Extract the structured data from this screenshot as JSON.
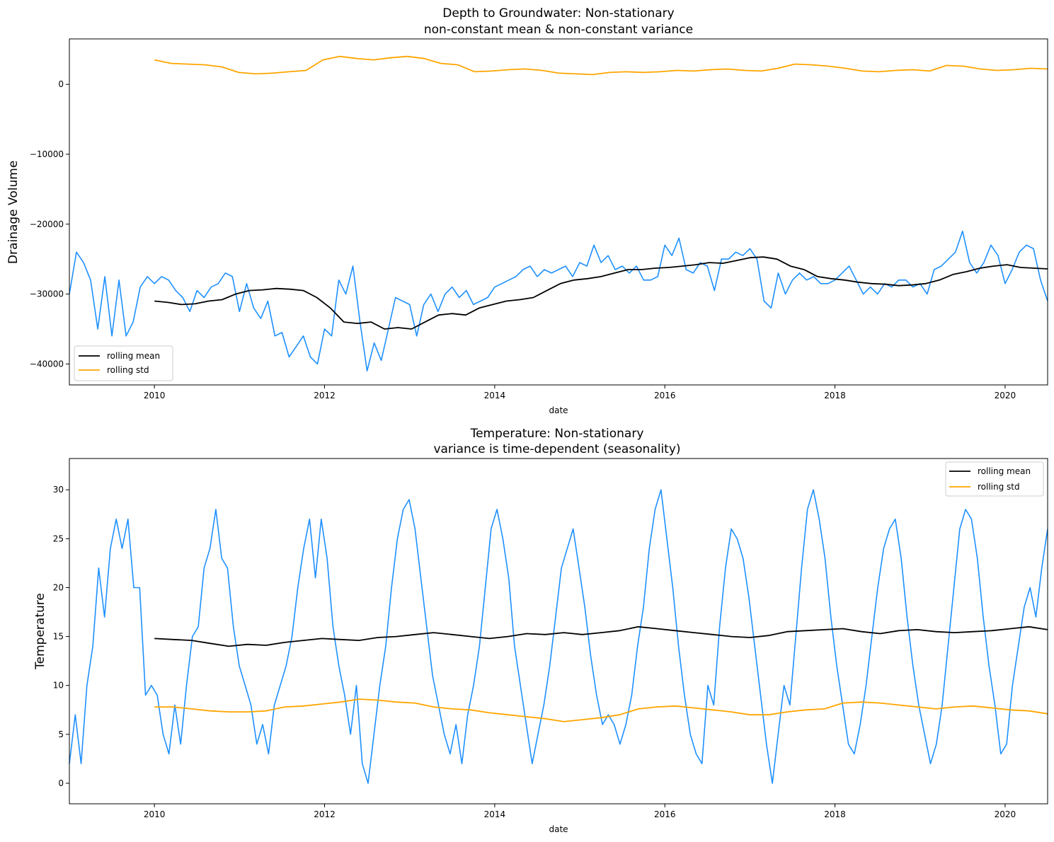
{
  "chart_data": [
    {
      "type": "line",
      "title": "Depth to Groundwater: Non-stationary",
      "subtitle": "non-constant mean & non-constant variance",
      "xlabel": "date",
      "ylabel": "Drainage Volume",
      "xlim": [
        2009.0,
        2020.5
      ],
      "ylim": [
        -43000,
        6500
      ],
      "xticks": [
        "2010",
        "2012",
        "2014",
        "2016",
        "2018",
        "2020"
      ],
      "yticks": [
        "−40000",
        "−30000",
        "−20000",
        "−10000",
        "0"
      ],
      "legend_loc": "lower-left",
      "series": [
        {
          "name": "",
          "color": "#1e90ff",
          "x_start": 2009.0,
          "x_end": 2020.5,
          "knots": [
            -30000,
            -24000,
            -25500,
            -28000,
            -35000,
            -27500,
            -36000,
            -28000,
            -36000,
            -34000,
            -29000,
            -27500,
            -28500,
            -27500,
            -28000,
            -29500,
            -30500,
            -32500,
            -29500,
            -30500,
            -29000,
            -28500,
            -27000,
            -27500,
            -32500,
            -28500,
            -32000,
            -33500,
            -31000,
            -36000,
            -35500,
            -39000,
            -37500,
            -36000,
            -39000,
            -40000,
            -35000,
            -36000,
            -28000,
            -30000,
            -26000,
            -34000,
            -41000,
            -37000,
            -39500,
            -35000,
            -30500,
            -31000,
            -31500,
            -36000,
            -31500,
            -30000,
            -32500,
            -30000,
            -29000,
            -30500,
            -29500,
            -31500,
            -31000,
            -30500,
            -29000,
            -28500,
            -28000,
            -27500,
            -26500,
            -26000,
            -27500,
            -26500,
            -27000,
            -26500,
            -26000,
            -27500,
            -25500,
            -26000,
            -23000,
            -25500,
            -24500,
            -26500,
            -26000,
            -27000,
            -26000,
            -28000,
            -28000,
            -27500,
            -23000,
            -24500,
            -22000,
            -26500,
            -27000,
            -25500,
            -26000,
            -29500,
            -25000,
            -25000,
            -24000,
            -24500,
            -23500,
            -25000,
            -31000,
            -32000,
            -27000,
            -30000,
            -28000,
            -27000,
            -28000,
            -27500,
            -28500,
            -28500,
            -28000,
            -27000,
            -26000,
            -28000,
            -30000,
            -29000,
            -30000,
            -28500,
            -29000,
            -28000,
            -28000,
            -29000,
            -28500,
            -30000,
            -26500,
            -26000,
            -25000,
            -24000,
            -21000,
            -25500,
            -27000,
            -25500,
            -23000,
            -24500,
            -28500,
            -26500,
            -24000,
            -23000,
            -23500,
            -28000,
            -31000
          ]
        },
        {
          "name": "rolling mean",
          "color": "#000000",
          "x_start": 2010.0,
          "x_end": 2020.5,
          "knots": [
            -31000,
            -31200,
            -31500,
            -31400,
            -31000,
            -30800,
            -30000,
            -29500,
            -29400,
            -29200,
            -29300,
            -29500,
            -30500,
            -32000,
            -34000,
            -34200,
            -34000,
            -35000,
            -34800,
            -35000,
            -34000,
            -33000,
            -32800,
            -33000,
            -32000,
            -31500,
            -31000,
            -30800,
            -30500,
            -29500,
            -28500,
            -28000,
            -27800,
            -27500,
            -27000,
            -26500,
            -26500,
            -26300,
            -26200,
            -26000,
            -25800,
            -25500,
            -25600,
            -25200,
            -24800,
            -24700,
            -25000,
            -26000,
            -26500,
            -27500,
            -27800,
            -28000,
            -28300,
            -28500,
            -28600,
            -28800,
            -28700,
            -28500,
            -28000,
            -27200,
            -26800,
            -26300,
            -26000,
            -25800,
            -26200,
            -26300,
            -26400
          ]
        },
        {
          "name": "rolling std",
          "color": "#ffa500",
          "x_start": 2010.0,
          "x_end": 2020.5,
          "knots": [
            3500,
            3000,
            2900,
            2800,
            2500,
            1700,
            1500,
            1600,
            1800,
            2000,
            3500,
            4000,
            3700,
            3500,
            3800,
            4000,
            3700,
            3000,
            2800,
            1800,
            1900,
            2100,
            2200,
            2000,
            1600,
            1500,
            1400,
            1700,
            1800,
            1700,
            1800,
            2000,
            1900,
            2100,
            2200,
            2000,
            1900,
            2300,
            2900,
            2800,
            2600,
            2300,
            1900,
            1800,
            2000,
            2100,
            1900,
            2700,
            2600,
            2200,
            2000,
            2100,
            2300,
            2200
          ]
        }
      ]
    },
    {
      "type": "line",
      "title": "Temperature: Non-stationary",
      "subtitle": "variance is time-dependent (seasonality)",
      "xlabel": "date",
      "ylabel": "Temperature",
      "xlim": [
        2009.0,
        2020.5
      ],
      "ylim": [
        -2.1,
        33.2
      ],
      "xticks": [
        "2010",
        "2012",
        "2014",
        "2016",
        "2018",
        "2020"
      ],
      "yticks": [
        "0",
        "5",
        "10",
        "15",
        "20",
        "25",
        "30"
      ],
      "legend_loc": "upper-right",
      "series": [
        {
          "name": "",
          "color": "#1e90ff",
          "x_start": 2009.0,
          "x_end": 2020.5,
          "knots": [
            2,
            7,
            2,
            10,
            14,
            22,
            17,
            24,
            27,
            24,
            27,
            20,
            20,
            9,
            10,
            9,
            5,
            3,
            8,
            4,
            10,
            15,
            16,
            22,
            24,
            28,
            23,
            22,
            16,
            12,
            10,
            8,
            4,
            6,
            3,
            8,
            10,
            12,
            15,
            20,
            24,
            27,
            21,
            27,
            23,
            16,
            12,
            9,
            5,
            10,
            2,
            0,
            5,
            10,
            14,
            20,
            25,
            28,
            29,
            26,
            21,
            16,
            11,
            8,
            5,
            3,
            6,
            2,
            7,
            10,
            14,
            20,
            26,
            28,
            25,
            21,
            14,
            10,
            6,
            2,
            5,
            8,
            12,
            17,
            22,
            24,
            26,
            22,
            18,
            13,
            9,
            6,
            7,
            6,
            4,
            6,
            9,
            14,
            18,
            24,
            28,
            30,
            25,
            20,
            14,
            9,
            5,
            3,
            2,
            10,
            8,
            16,
            22,
            26,
            25,
            23,
            19,
            14,
            9,
            4,
            0,
            5,
            10,
            8,
            15,
            22,
            28,
            30,
            27,
            23,
            17,
            12,
            8,
            4,
            3,
            6,
            10,
            15,
            20,
            24,
            26,
            27,
            23,
            17,
            12,
            8,
            5,
            2,
            4,
            8,
            14,
            20,
            26,
            28,
            27,
            23,
            17,
            12,
            8,
            3,
            4,
            10,
            14,
            18,
            20,
            17,
            22,
            26
          ]
        },
        {
          "name": "rolling mean",
          "color": "#000000",
          "x_start": 2010.0,
          "x_end": 2020.5,
          "knots": [
            14.8,
            14.7,
            14.6,
            14.3,
            14.0,
            14.2,
            14.1,
            14.4,
            14.6,
            14.8,
            14.7,
            14.6,
            14.9,
            15.0,
            15.2,
            15.4,
            15.2,
            15.0,
            14.8,
            15.0,
            15.3,
            15.2,
            15.4,
            15.2,
            15.4,
            15.6,
            16.0,
            15.8,
            15.6,
            15.4,
            15.2,
            15.0,
            14.9,
            15.1,
            15.5,
            15.6,
            15.7,
            15.8,
            15.5,
            15.3,
            15.6,
            15.7,
            15.5,
            15.4,
            15.5,
            15.6,
            15.8,
            16.0,
            15.7
          ]
        },
        {
          "name": "rolling std",
          "color": "#ffa500",
          "x_start": 2010.0,
          "x_end": 2020.5,
          "knots": [
            7.8,
            7.8,
            7.6,
            7.4,
            7.3,
            7.3,
            7.4,
            7.8,
            7.9,
            8.1,
            8.3,
            8.6,
            8.5,
            8.3,
            8.2,
            7.8,
            7.6,
            7.5,
            7.2,
            7.0,
            6.8,
            6.6,
            6.3,
            6.5,
            6.7,
            7.0,
            7.6,
            7.8,
            7.9,
            7.7,
            7.5,
            7.3,
            7.0,
            7.0,
            7.3,
            7.5,
            7.6,
            8.2,
            8.3,
            8.2,
            8.0,
            7.8,
            7.6,
            7.8,
            7.9,
            7.7,
            7.5,
            7.4,
            7.1
          ]
        }
      ]
    }
  ]
}
